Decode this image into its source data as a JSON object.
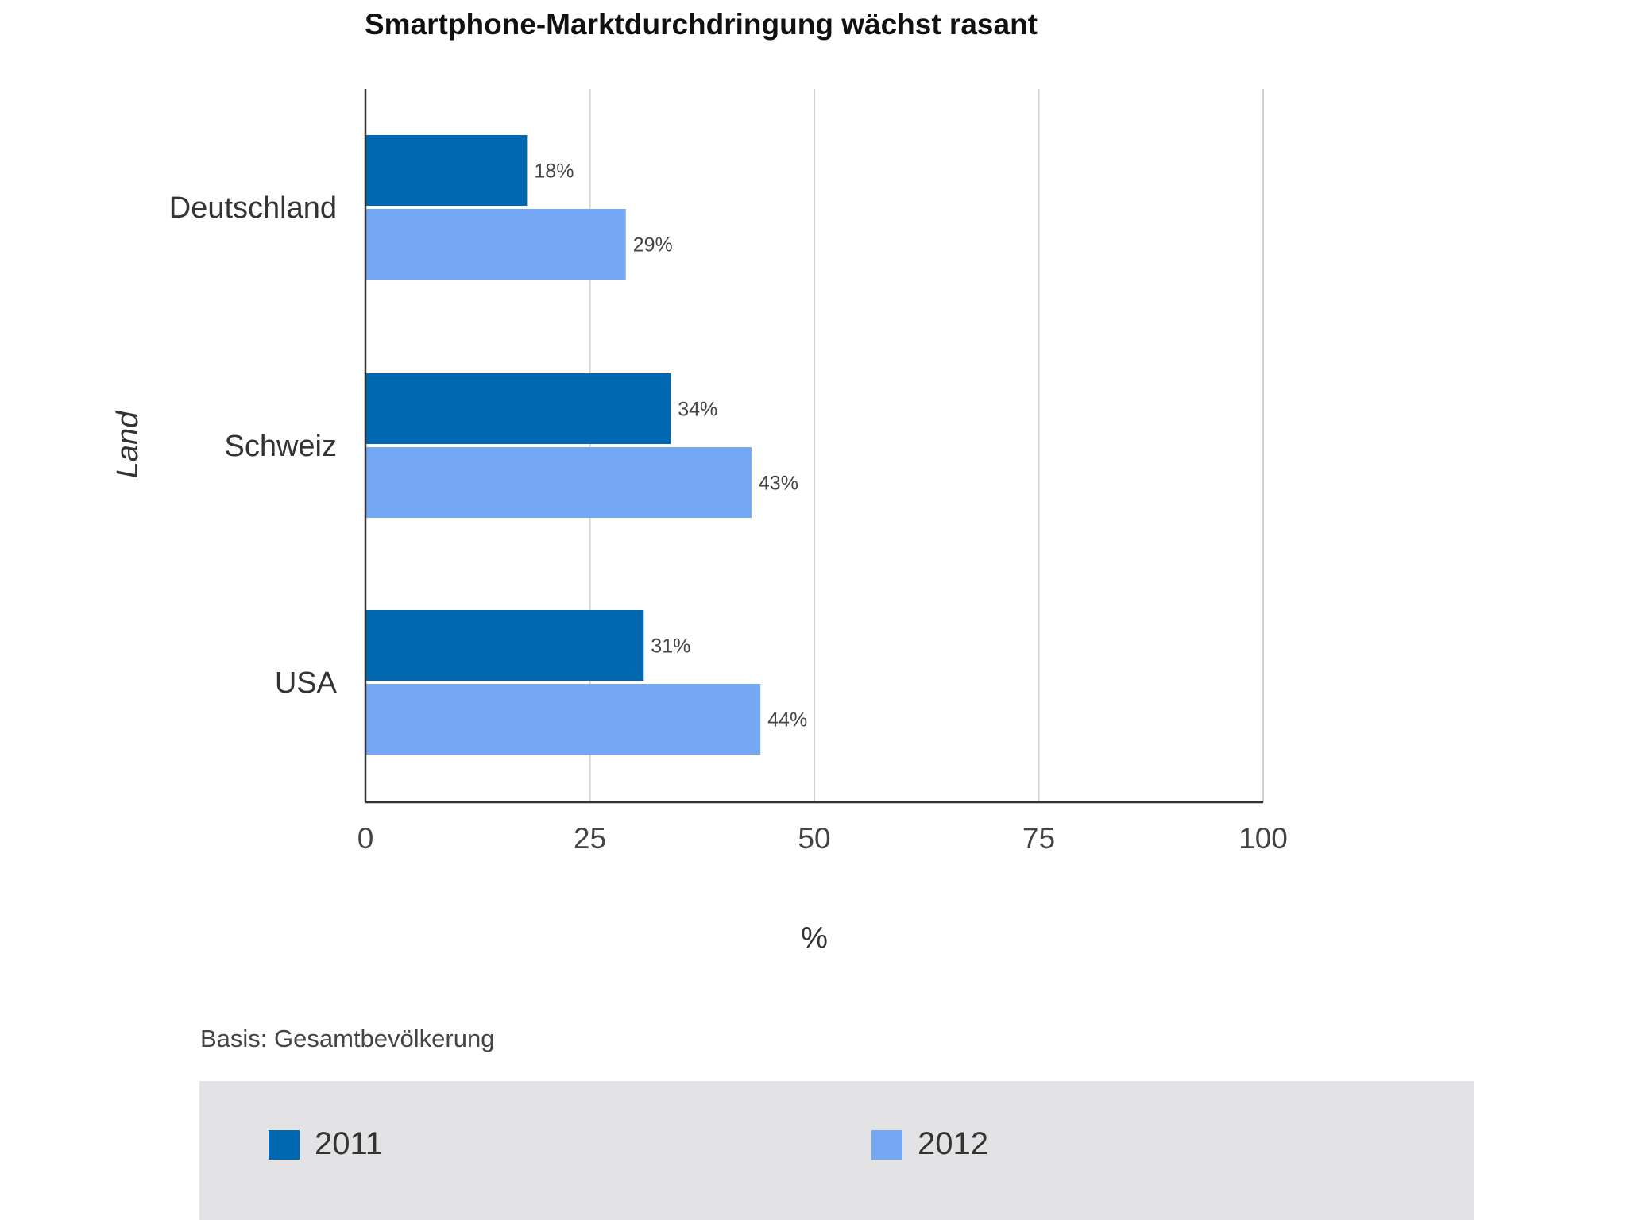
{
  "chart_data": {
    "type": "bar",
    "orientation": "horizontal",
    "title": "Smartphone-Marktdurchdringung wächst rasant",
    "categories": [
      "Deutschland",
      "Schweiz",
      "USA"
    ],
    "series": [
      {
        "name": "2011",
        "values": [
          18,
          34,
          31
        ],
        "labels": [
          "18%",
          "34%",
          "31%"
        ],
        "color": "#0068b0"
      },
      {
        "name": "2012",
        "values": [
          29,
          43,
          44
        ],
        "labels": [
          "29%",
          "43%",
          "44%"
        ],
        "color": "#74a8f5"
      }
    ],
    "xlabel": "%",
    "ylabel": "Land",
    "xlim": [
      0,
      100
    ],
    "xticks": [
      0,
      25,
      50,
      75,
      100
    ],
    "xtick_labels": [
      "0",
      "25",
      "50",
      "75",
      "100"
    ],
    "grid": true,
    "legend_position": "bottom",
    "footnote": "Basis: Gesamtbevölkerung"
  },
  "colors": {
    "grid": "#d0d0d0",
    "axis": "#333333",
    "legend_bg": "#e3e3e6"
  }
}
